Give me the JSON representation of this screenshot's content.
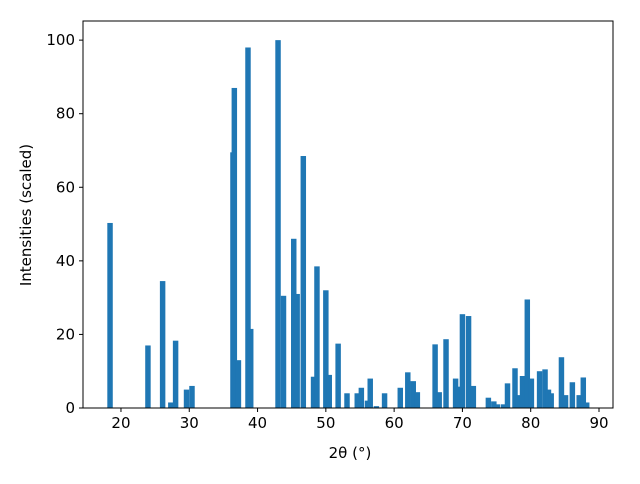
{
  "chart_data": {
    "type": "bar",
    "x_label": "2θ (°)",
    "y_label": "Intensities (scaled)",
    "color": "#1f77b4",
    "bar_width": 0.8,
    "x": [
      18.4,
      23.95,
      26.1,
      27.3,
      28.0,
      29.6,
      30.4,
      36.4,
      36.6,
      37.2,
      38.6,
      39.0,
      43.0,
      43.8,
      45.3,
      45.8,
      46.7,
      48.2,
      48.7,
      50.0,
      50.5,
      51.8,
      53.1,
      54.6,
      55.2,
      56.1,
      56.5,
      57.4,
      58.6,
      60.9,
      62.0,
      62.8,
      63.4,
      66.0,
      66.6,
      67.6,
      69.0,
      69.4,
      70.0,
      70.9,
      71.6,
      73.8,
      74.6,
      75.1,
      76.0,
      76.6,
      77.7,
      78.2,
      78.8,
      79.5,
      80.1,
      81.3,
      82.1,
      82.6,
      83.0,
      84.5,
      85.1,
      86.1,
      87.1,
      87.7,
      88.2
    ],
    "values": [
      50.3,
      17,
      34.5,
      1.5,
      18.3,
      5,
      6,
      69.5,
      87,
      13,
      98,
      21.5,
      100,
      30.5,
      46,
      31,
      68.5,
      8.5,
      38.5,
      32,
      9,
      17.5,
      4,
      4,
      5.5,
      2,
      8,
      0.5,
      4,
      5.5,
      9.7,
      7.3,
      4.3,
      17.3,
      4.3,
      18.7,
      8,
      5.8,
      25.5,
      25,
      6,
      2.8,
      1.8,
      1,
      1,
      6.7,
      10.8,
      3.5,
      8.7,
      29.5,
      8,
      10,
      10.5,
      5,
      4,
      13.8,
      3.5,
      7,
      3.5,
      8.3,
      1.5
    ],
    "xlim": [
      14.44,
      92.05
    ],
    "ylim": [
      0,
      105.2
    ],
    "xticks": [
      20,
      30,
      40,
      50,
      60,
      70,
      80,
      90
    ],
    "yticks": [
      0,
      20,
      40,
      60,
      80,
      100
    ]
  }
}
